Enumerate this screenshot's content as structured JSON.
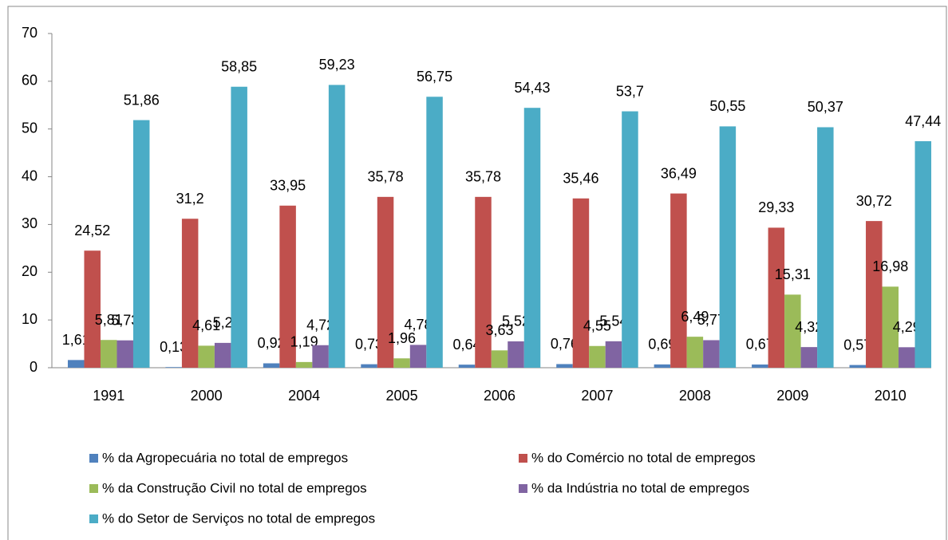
{
  "chart_data": {
    "type": "bar",
    "categories": [
      "1991",
      "2000",
      "2004",
      "2005",
      "2006",
      "2007",
      "2008",
      "2009",
      "2010"
    ],
    "series": [
      {
        "name": "% da Agropecuária no total de empregos",
        "color": "#4f81bd",
        "values": [
          1.61,
          0.13,
          0.92,
          0.73,
          0.64,
          0.76,
          0.69,
          0.67,
          0.57
        ],
        "value_labels": [
          "1,61",
          "0,13",
          "0,92",
          "0,73",
          "0,64",
          "0,76",
          "0,69",
          "0,67",
          "0,57"
        ]
      },
      {
        "name": "% do Comércio no total de empregos",
        "color": "#c0504d",
        "values": [
          24.52,
          31.2,
          33.95,
          35.78,
          35.78,
          35.46,
          36.49,
          29.33,
          30.72
        ],
        "value_labels": [
          "24,52",
          "31,2",
          "33,95",
          "35,78",
          "35,78",
          "35,46",
          "36,49",
          "29,33",
          "30,72"
        ]
      },
      {
        "name": "% da Construção Civil no total de empregos",
        "color": "#9bbb59",
        "values": [
          5.81,
          4.61,
          1.19,
          1.96,
          3.63,
          4.55,
          6.49,
          15.31,
          16.98
        ],
        "value_labels": [
          "5,81",
          "4,61",
          "1,19",
          "1,96",
          "3,63",
          "4,55",
          "6,49",
          "15,31",
          "16,98"
        ]
      },
      {
        "name": "% da Indústria no total de empregos",
        "color": "#8064a2",
        "values": [
          5.73,
          5.2,
          4.72,
          4.78,
          5.52,
          5.54,
          5.77,
          4.32,
          4.29
        ],
        "value_labels": [
          "5,73",
          "5,2",
          "4,72",
          "4,78",
          "5,52",
          "5,54",
          "5,77",
          "4,32",
          "4,29"
        ]
      },
      {
        "name": "% do Setor de Serviços no total de empregos",
        "color": "#4bacc6",
        "values": [
          51.86,
          58.85,
          59.23,
          56.75,
          54.43,
          53.7,
          50.55,
          50.37,
          47.44
        ],
        "value_labels": [
          "51,86",
          "58,85",
          "59,23",
          "56,75",
          "54,43",
          "53,7",
          "50,55",
          "50,37",
          "47,44"
        ]
      }
    ],
    "ylim": [
      0,
      70
    ],
    "yticks": [
      0,
      10,
      20,
      30,
      40,
      50,
      60,
      70
    ],
    "grid": false,
    "legend": "bottom"
  }
}
